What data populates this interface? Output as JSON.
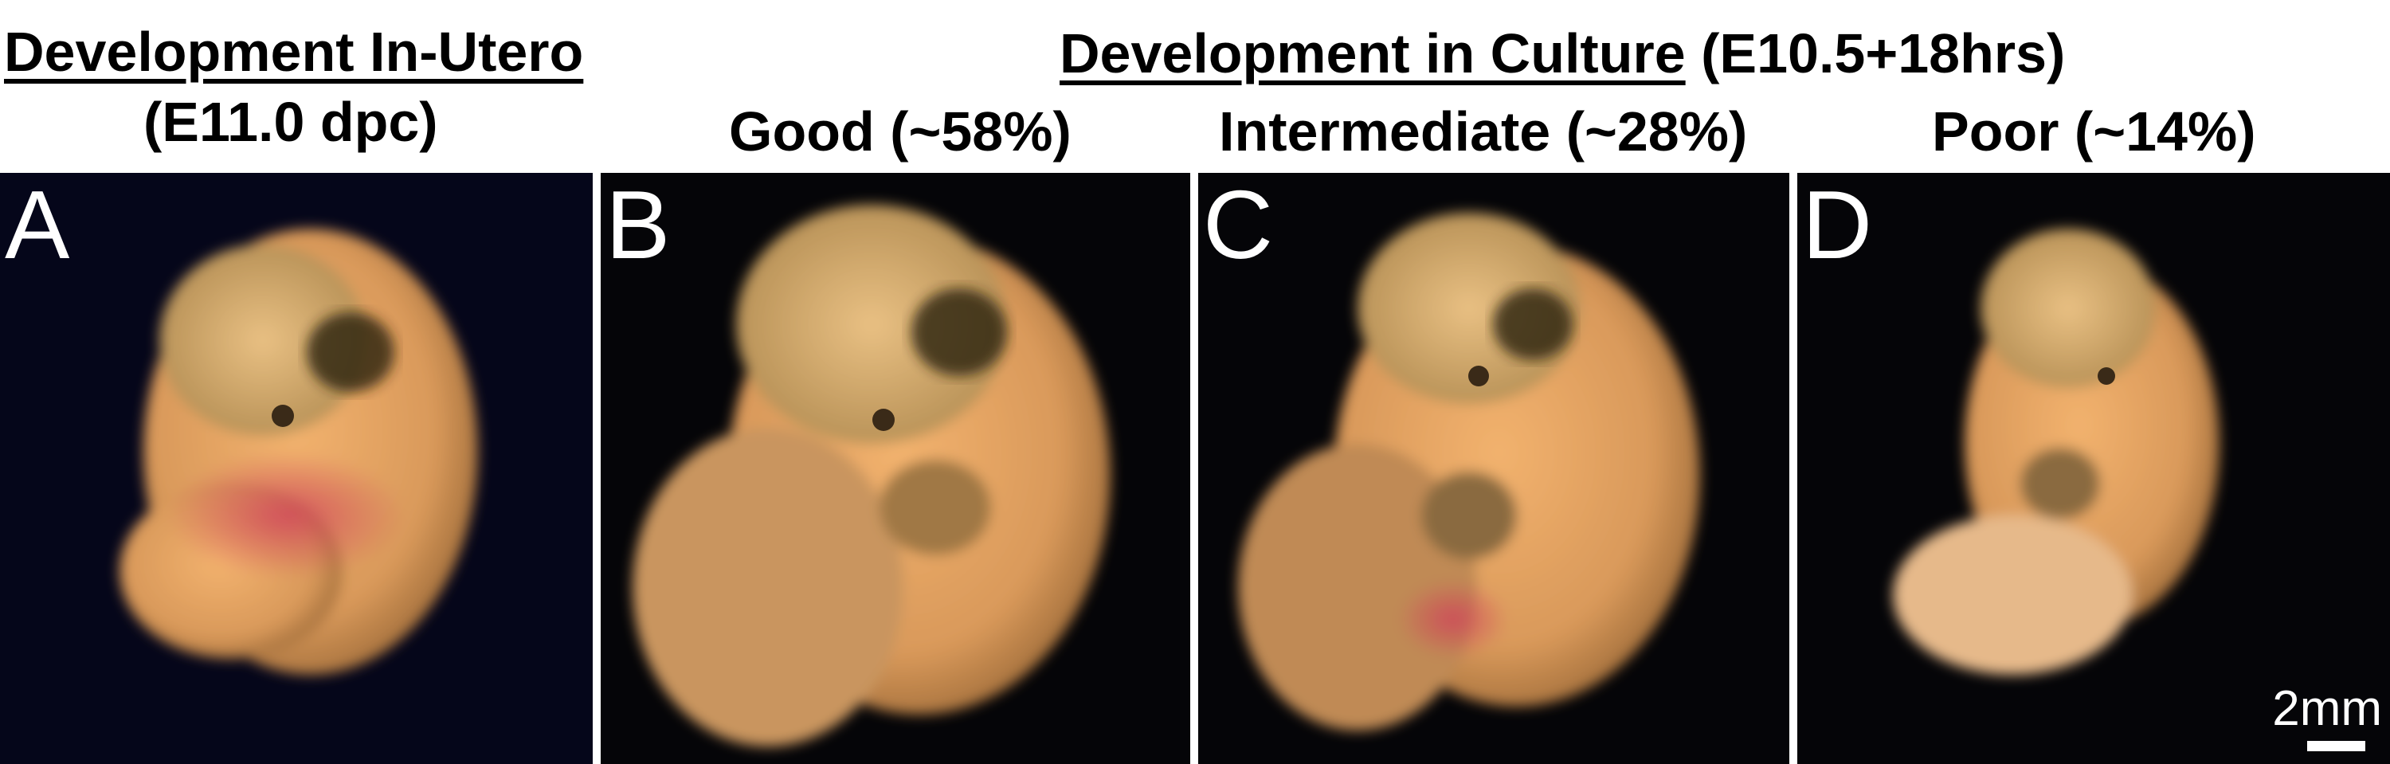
{
  "header": {
    "in_utero_title": "Development In-Utero",
    "in_utero_subtitle": "(E11.0 dpc)",
    "culture_title": "Development in Culture",
    "culture_condition": "(E10.5+18hrs)"
  },
  "panels": [
    {
      "letter": "A",
      "label": ""
    },
    {
      "letter": "B",
      "label": "Good (~58%)"
    },
    {
      "letter": "C",
      "label": "Intermediate (~28%)"
    },
    {
      "letter": "D",
      "label": "Poor (~14%)"
    }
  ],
  "scale_bar": {
    "label": "2mm"
  },
  "colors": {
    "background_a": "#05061a",
    "background_bcd": "#050508",
    "embryo": "#e0a060",
    "text": "#000000"
  }
}
